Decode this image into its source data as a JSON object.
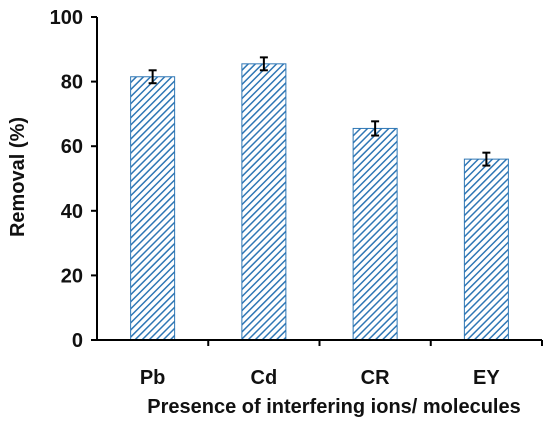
{
  "chart_data": {
    "type": "bar",
    "categories": [
      "Pb",
      "Cd",
      "CR",
      "EY"
    ],
    "values": [
      81.5,
      85.5,
      65.5,
      56.0
    ],
    "error": [
      2.0,
      2.0,
      2.2,
      2.0
    ],
    "xlabel": "Presence of interfering ions/ molecules",
    "ylabel": "Removal (%)",
    "ylim": [
      0,
      100
    ],
    "yticks": [
      0,
      20,
      40,
      60,
      80,
      100
    ],
    "grid": false,
    "legend": "none",
    "bar_fill_pattern": "diagonal-hatch",
    "colors": {
      "bar_hatch": "#2f77b5",
      "bar_background": "#ffffff",
      "axis": "#000000",
      "error_bar": "#000000"
    }
  }
}
